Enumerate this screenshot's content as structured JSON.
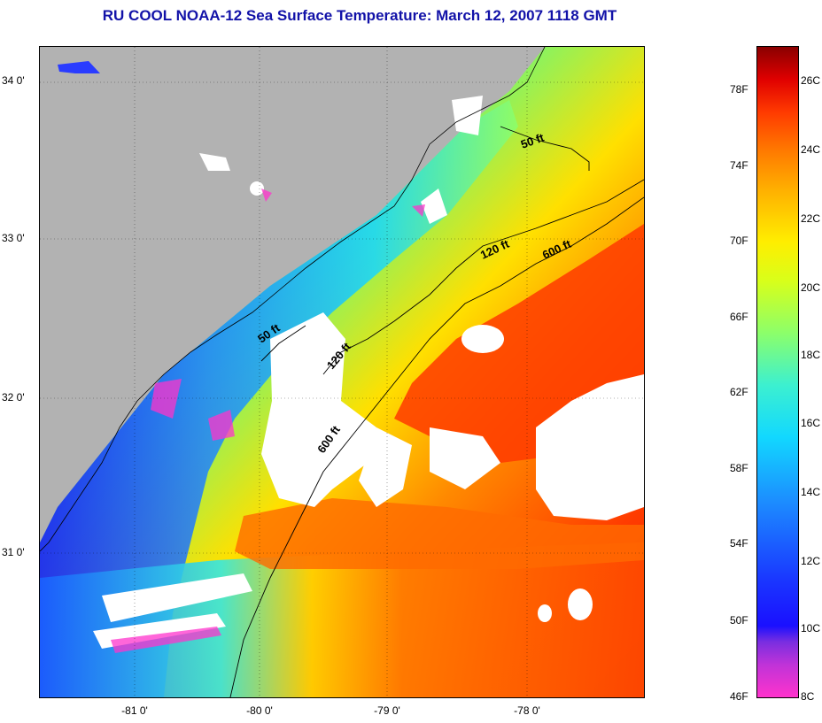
{
  "title": "RU COOL  NOAA-12  Sea Surface Temperature:  March 12, 2007 1118 GMT",
  "latitude_labels": [
    "34 0'",
    "33 0'",
    "32 0'",
    "31 0'"
  ],
  "longitude_labels": [
    "-81 0'",
    "-80 0'",
    "-79 0'",
    "-78 0'"
  ],
  "contour_labels": [
    "50 ft",
    "120 ft",
    "600 ft",
    "50 ft",
    "120 ft",
    "600 ft"
  ],
  "colorbar": {
    "fahrenheit_labels": [
      "78F",
      "74F",
      "70F",
      "66F",
      "62F",
      "58F",
      "54F",
      "50F",
      "46F"
    ],
    "celsius_labels": [
      "26C",
      "24C",
      "22C",
      "20C",
      "18C",
      "16C",
      "14C",
      "12C",
      "10C",
      "8C"
    ]
  },
  "colors": {
    "title": "#1212a8",
    "land": "#b2b2b2",
    "cloud": "#ffffff"
  }
}
